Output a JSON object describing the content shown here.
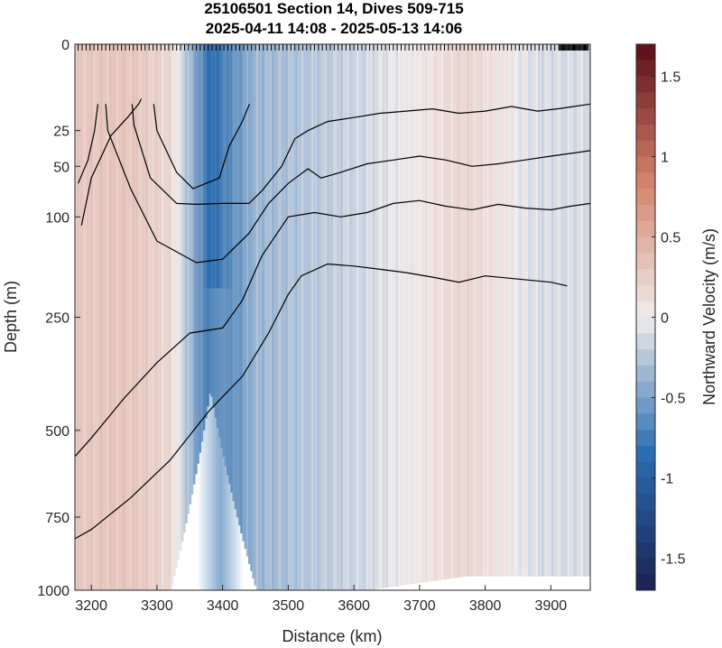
{
  "chart_data": {
    "type": "heatmap",
    "title": [
      "25106501 Section 14, Dives 509-715",
      "2025-04-11 14:08 - 2025-05-13 14:06"
    ],
    "xlabel": "Distance (km)",
    "ylabel": "Depth (m)",
    "colorbar_label": "Northward Velocity (m/s)",
    "xlim": [
      3175,
      3960
    ],
    "xticks": [
      3200,
      3300,
      3400,
      3500,
      3600,
      3700,
      3800,
      3900
    ],
    "yticks": [
      0,
      25,
      50,
      100,
      250,
      500,
      750,
      1000
    ],
    "y_scale": "sqrt",
    "clim": [
      -1.7,
      1.7
    ],
    "cticks": [
      -1.5,
      -1,
      -0.5,
      0,
      0.5,
      1,
      1.5
    ],
    "colormap": {
      "negative_end": "#1a2150",
      "negative_mid": "#2a6db0",
      "zero": "#f0ecec",
      "positive_mid": "#d2826a",
      "positive_end": "#5a0c18"
    },
    "velocity_field": [
      {
        "x": 3185,
        "depth_top": 0,
        "depth_bottom": 1000,
        "value": 0.28
      },
      {
        "x": 3260,
        "depth_top": 0,
        "depth_bottom": 1000,
        "value": 0.3
      },
      {
        "x": 3320,
        "depth_top": 0,
        "depth_bottom": 1000,
        "value": 0.15
      },
      {
        "x": 3380,
        "depth_top": 0,
        "depth_bottom": 400,
        "value": -0.85
      },
      {
        "x": 3395,
        "depth_top": 200,
        "depth_bottom": 1000,
        "value": -0.55
      },
      {
        "x": 3450,
        "depth_top": 0,
        "depth_bottom": 1000,
        "value": -0.35
      },
      {
        "x": 3620,
        "depth_top": 0,
        "depth_bottom": 1000,
        "value": -0.12
      },
      {
        "x": 3770,
        "depth_top": 0,
        "depth_bottom": 950,
        "value": 0.18
      },
      {
        "x": 3880,
        "depth_top": 0,
        "depth_bottom": 950,
        "value": -0.1
      }
    ],
    "contours": [
      {
        "x": [
          3180,
          3195,
          3205,
          3210
        ],
        "depth": [
          65,
          45,
          25,
          12
        ]
      },
      {
        "x": [
          3185,
          3200,
          3230,
          3255,
          3272,
          3276
        ],
        "depth": [
          110,
          60,
          28,
          18,
          12,
          10
        ]
      },
      {
        "x": [
          3295,
          3300,
          3330,
          3355,
          3395,
          3410,
          3430,
          3441
        ],
        "depth": [
          12,
          25,
          55,
          70,
          60,
          35,
          20,
          12
        ]
      },
      {
        "x": [
          3262,
          3265,
          3290,
          3330,
          3360,
          3400,
          3440,
          3460,
          3490,
          3510,
          3530,
          3560,
          3600,
          3640,
          3680,
          3720,
          3760,
          3800,
          3840,
          3880,
          3910,
          3935,
          3960
        ],
        "depth": [
          12,
          22,
          60,
          85,
          86,
          85,
          85,
          72,
          50,
          30,
          25,
          20,
          18,
          16,
          15,
          14,
          16,
          15,
          13,
          15,
          14,
          13,
          12
        ]
      },
      {
        "x": [
          3222,
          3225,
          3260,
          3300,
          3360,
          3400,
          3440,
          3470,
          3500,
          3530,
          3550,
          3580,
          3620,
          3660,
          3700,
          3740,
          3780,
          3820,
          3860,
          3900,
          3930,
          3960
        ],
        "depth": [
          12,
          25,
          70,
          130,
          160,
          155,
          120,
          85,
          65,
          52,
          60,
          55,
          48,
          45,
          42,
          45,
          50,
          48,
          45,
          42,
          40,
          38
        ]
      },
      {
        "x": [
          3175,
          3200,
          3250,
          3300,
          3350,
          3400,
          3430,
          3460,
          3500,
          3540,
          3580,
          3620,
          3660,
          3700,
          3740,
          3780,
          3820,
          3860,
          3900,
          3930,
          3960
        ],
        "depth": [
          570,
          520,
          420,
          340,
          280,
          270,
          220,
          150,
          100,
          95,
          100,
          95,
          85,
          82,
          88,
          92,
          86,
          90,
          92,
          88,
          85
        ]
      },
      {
        "x": [
          3175,
          3200,
          3260,
          3320,
          3380,
          3430,
          3470,
          3500,
          3520,
          3560,
          3600,
          3640,
          3680,
          3720,
          3760,
          3800,
          3850,
          3900,
          3925
        ],
        "depth": [
          820,
          790,
          690,
          580,
          450,
          370,
          280,
          210,
          180,
          162,
          165,
          170,
          175,
          182,
          190,
          180,
          185,
          190,
          196
        ]
      }
    ],
    "dive_marks_x_range": [
      3180,
      3958
    ]
  }
}
